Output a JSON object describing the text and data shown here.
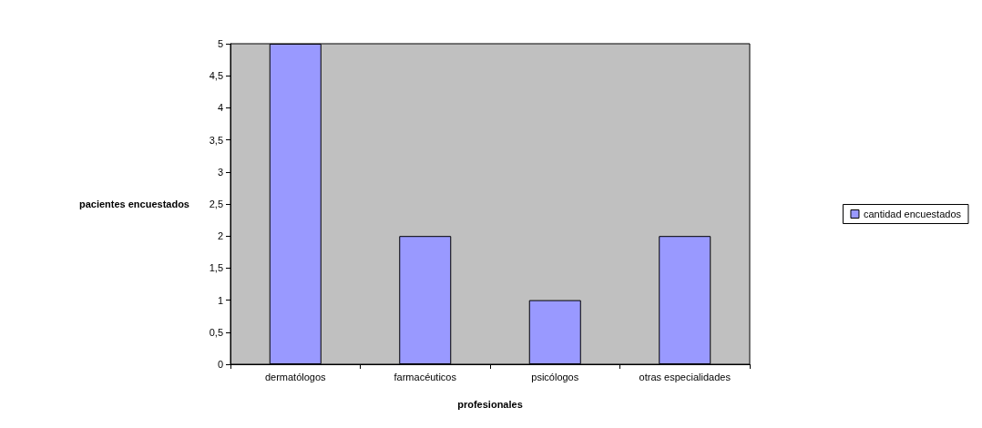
{
  "chart_data": {
    "type": "bar",
    "xlabel": "profesionales",
    "ylabel": "pacientes encuestados",
    "categories": [
      "dermatólogos",
      "farmacéuticos",
      "psicólogos",
      "otras especialidades"
    ],
    "series": [
      {
        "name": "cantidad encuestados",
        "color": "#9999ff",
        "values": [
          5,
          2,
          1,
          2
        ]
      }
    ],
    "ylim": [
      0,
      5
    ],
    "yticks": [
      0,
      {
        "value": 0.5,
        "label": "0,5"
      },
      1,
      {
        "value": 1.5,
        "label": "1,5"
      },
      2,
      {
        "value": 2.5,
        "label": "2,5"
      },
      3,
      {
        "value": 3.5,
        "label": "3,5"
      },
      4,
      {
        "value": 4.5,
        "label": "4,5"
      },
      5
    ],
    "grid": false,
    "legend": "right"
  }
}
